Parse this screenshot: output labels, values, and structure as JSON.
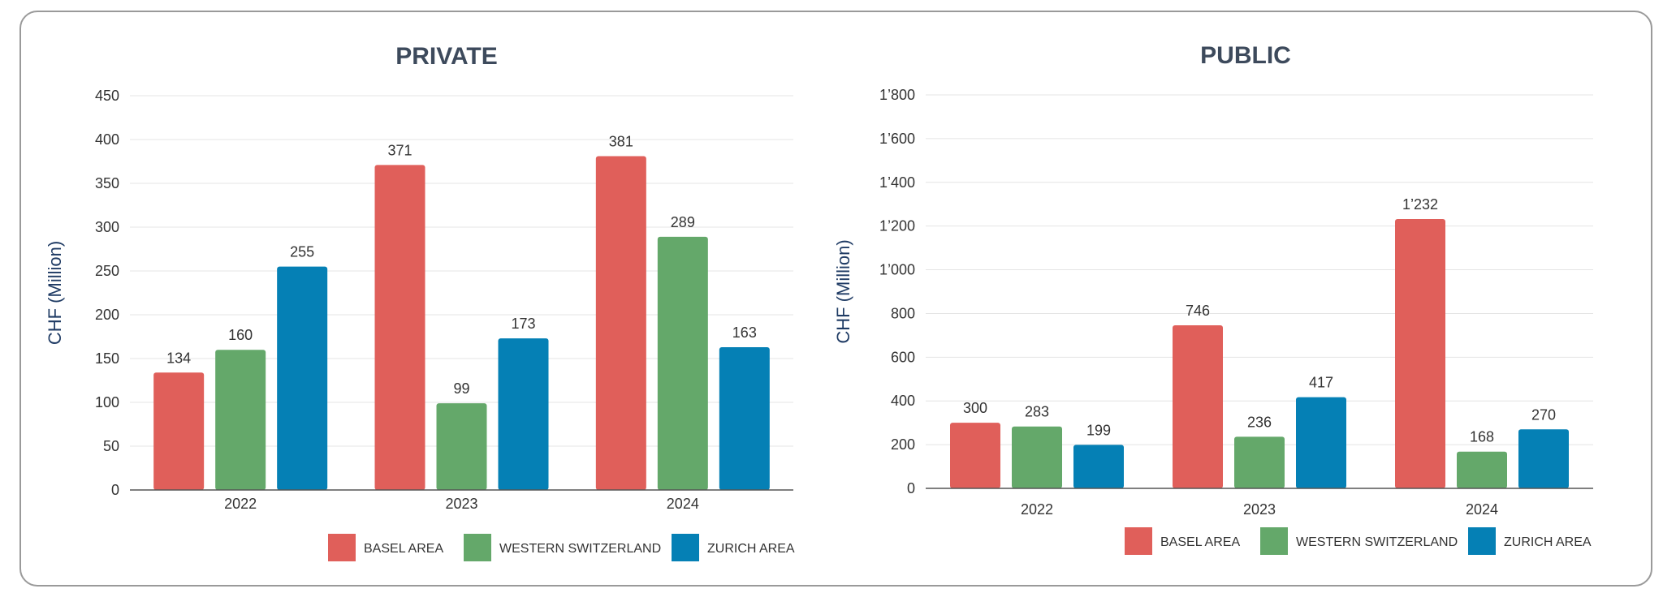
{
  "colors": {
    "basel": "#e05f5a",
    "western": "#64a86a",
    "zurich": "#0580b5"
  },
  "legend": [
    "BASEL AREA",
    "WESTERN SWITZERLAND",
    "ZURICH AREA"
  ],
  "chart_data": [
    {
      "type": "bar",
      "title": "PRIVATE",
      "ylabel": "CHF (Million)",
      "xlabel": "",
      "categories": [
        "2022",
        "2023",
        "2024"
      ],
      "ylim": [
        0,
        450
      ],
      "yticks": [
        0,
        50,
        100,
        150,
        200,
        250,
        300,
        350,
        400,
        450
      ],
      "ytick_labels": [
        "0",
        "50",
        "100",
        "150",
        "200",
        "250",
        "300",
        "350",
        "400",
        "450"
      ],
      "grid": true,
      "legend_position": "bottom",
      "series": [
        {
          "name": "BASEL AREA",
          "values": [
            134,
            371,
            381
          ],
          "labels": [
            "134",
            "371",
            "381"
          ]
        },
        {
          "name": "WESTERN SWITZERLAND",
          "values": [
            160,
            99,
            289
          ],
          "labels": [
            "160",
            "99",
            "289"
          ]
        },
        {
          "name": "ZURICH AREA",
          "values": [
            255,
            173,
            163
          ],
          "labels": [
            "255",
            "173",
            "163"
          ]
        }
      ]
    },
    {
      "type": "bar",
      "title": "PUBLIC",
      "ylabel": "CHF (Million)",
      "xlabel": "",
      "categories": [
        "2022",
        "2023",
        "2024"
      ],
      "ylim": [
        0,
        1800
      ],
      "yticks": [
        0,
        200,
        400,
        600,
        800,
        1000,
        1200,
        1400,
        1600,
        1800
      ],
      "ytick_labels": [
        "0",
        "200",
        "400",
        "600",
        "800",
        "1’000",
        "1’200",
        "1’400",
        "1’600",
        "1’800"
      ],
      "grid": true,
      "legend_position": "bottom",
      "series": [
        {
          "name": "BASEL AREA",
          "values": [
            300,
            746,
            1232
          ],
          "labels": [
            "300",
            "746",
            "1’232"
          ]
        },
        {
          "name": "WESTERN SWITZERLAND",
          "values": [
            283,
            236,
            168
          ],
          "labels": [
            "283",
            "236",
            "168"
          ]
        },
        {
          "name": "ZURICH AREA",
          "values": [
            199,
            417,
            270
          ],
          "labels": [
            "199",
            "417",
            "270"
          ]
        }
      ]
    }
  ]
}
